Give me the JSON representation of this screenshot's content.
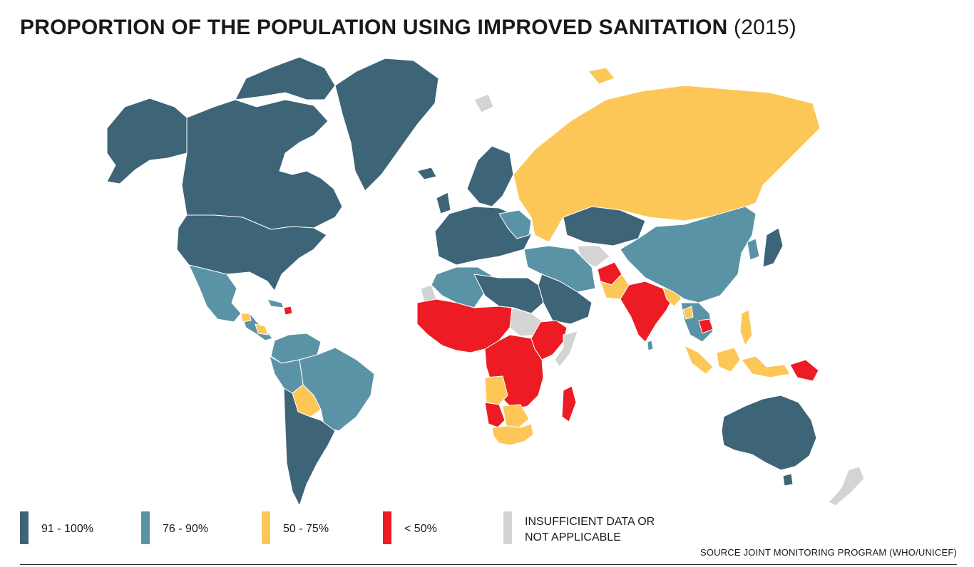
{
  "title": {
    "main": "PROPORTION OF THE POPULATION USING IMPROVED SANITATION",
    "year": "(2015)"
  },
  "colors": {
    "c91_100": "#3d6477",
    "c76_90": "#5b93a6",
    "c50_75": "#fcc757",
    "c_lt50": "#ed1c24",
    "c_na": "#d4d4d4",
    "border": "#ffffff"
  },
  "legend": [
    {
      "label": "91 - 100%",
      "color": "#3d6477"
    },
    {
      "label": "76 - 90%",
      "color": "#5b93a6"
    },
    {
      "label": "50 - 75%",
      "color": "#fcc757"
    },
    {
      "label": "< 50%",
      "color": "#ed1c24"
    },
    {
      "label": "INSUFFICIENT DATA OR",
      "label2": "NOT APPLICABLE",
      "color": "#d4d4d4"
    }
  ],
  "source": "SOURCE JOINT MONITORING PROGRAM (WHO/UNICEF)"
}
